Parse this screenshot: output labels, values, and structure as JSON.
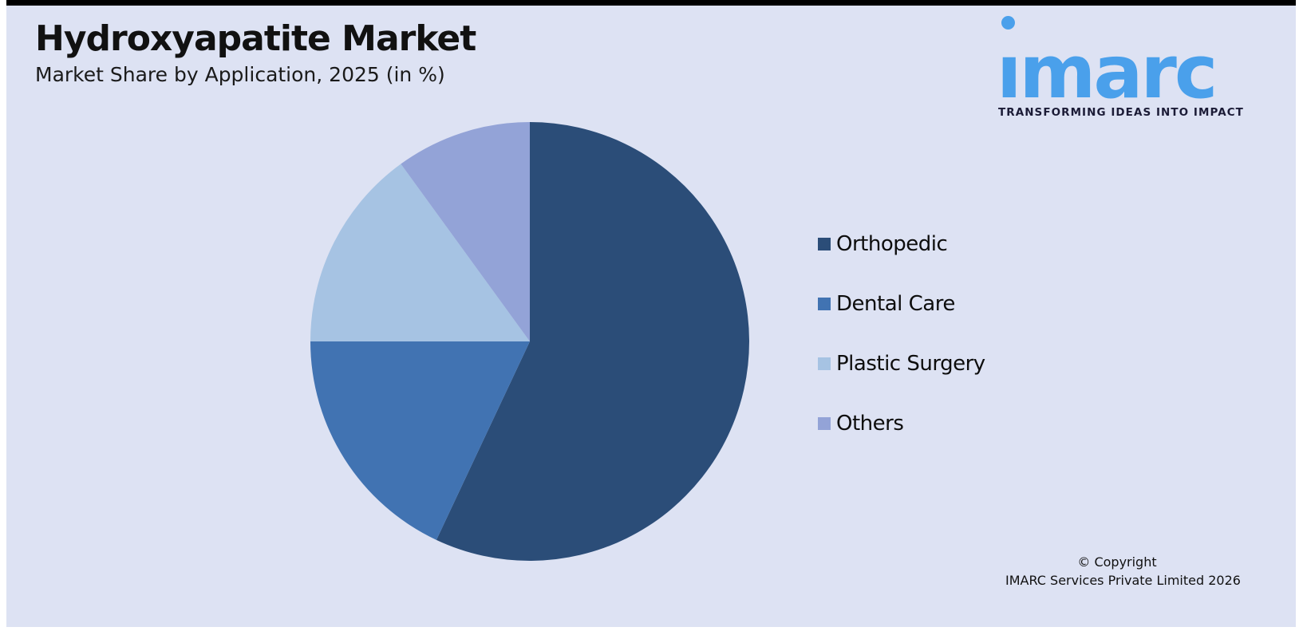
{
  "header": {
    "title": "Hydroxyapatite Market",
    "subtitle": "Market Share by Application, 2025 (in %)"
  },
  "logo": {
    "wordmark": "ımarc",
    "tagline": "TRANSFORMING IDEAS INTO IMPACT",
    "brand_color": "#4aa0eb",
    "tagline_color": "#1b1b36"
  },
  "chart_data": {
    "type": "pie",
    "title": "Market Share by Application, 2025 (in %)",
    "categories": [
      "Orthopedic",
      "Dental Care",
      "Plastic Surgery",
      "Others"
    ],
    "values": [
      57,
      18,
      15,
      10
    ],
    "colors": [
      "#2b4d78",
      "#4173b2",
      "#a6c3e3",
      "#93a3d7"
    ],
    "start_angle_deg": -90,
    "direction": "clockwise",
    "legend_position": "right",
    "data_labels": false
  },
  "legend": {
    "items": [
      {
        "label": "Orthopedic",
        "color": "#2b4d78"
      },
      {
        "label": "Dental Care",
        "color": "#4173b2"
      },
      {
        "label": "Plastic Surgery",
        "color": "#a6c3e3"
      },
      {
        "label": "Others",
        "color": "#93a3d7"
      }
    ]
  },
  "footer": {
    "copyright_line1": "© Copyright",
    "copyright_line2": "IMARC Services Private Limited 2026"
  },
  "theme": {
    "page_bg": "#ffffff",
    "card_bg": "#dde2f3",
    "top_border": "#000000"
  }
}
